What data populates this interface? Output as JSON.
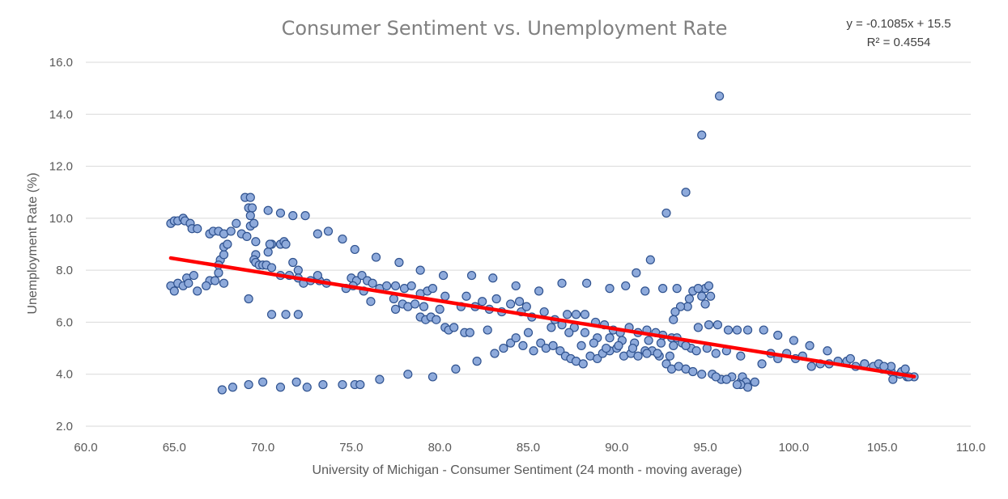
{
  "chart_data": {
    "type": "scatter",
    "title": "Consumer Sentiment vs. Unemployment Rate",
    "xlabel": "University of Michigan - Consumer Sentiment (24 month - moving average)",
    "ylabel": "Unemployment Rate (%)",
    "xlim": [
      60,
      110
    ],
    "ylim": [
      2,
      16
    ],
    "x_ticks": [
      "60.0",
      "65.0",
      "70.0",
      "75.0",
      "80.0",
      "85.0",
      "90.0",
      "95.0",
      "100.0",
      "105.0",
      "110.0"
    ],
    "y_ticks": [
      "2.0",
      "4.0",
      "6.0",
      "8.0",
      "10.0",
      "12.0",
      "14.0",
      "16.0"
    ],
    "grid": true,
    "legend": "none",
    "colors": {
      "marker_fill": "#8eaadb",
      "marker_edge": "#2f528f",
      "trendline": "#ff0000"
    },
    "trendline": {
      "type": "linear",
      "slope": -0.1085,
      "intercept": 15.5,
      "x_range": [
        64.8,
        106.8
      ],
      "equation": "y = -0.1085x + 15.5",
      "r_squared": "R² = 0.4554"
    },
    "points": [
      [
        64.8,
        9.8
      ],
      [
        65.0,
        9.9
      ],
      [
        65.2,
        9.9
      ],
      [
        65.5,
        10.0
      ],
      [
        65.6,
        9.9
      ],
      [
        65.9,
        9.8
      ],
      [
        66.0,
        9.6
      ],
      [
        66.3,
        9.6
      ],
      [
        67.0,
        9.4
      ],
      [
        67.2,
        9.5
      ],
      [
        67.5,
        9.5
      ],
      [
        67.8,
        9.4
      ],
      [
        68.2,
        9.5
      ],
      [
        68.5,
        9.8
      ],
      [
        68.8,
        9.4
      ],
      [
        69.1,
        9.3
      ],
      [
        69.3,
        9.7
      ],
      [
        69.5,
        9.8
      ],
      [
        69.0,
        10.8
      ],
      [
        69.3,
        10.8
      ],
      [
        69.2,
        10.4
      ],
      [
        69.4,
        10.4
      ],
      [
        69.3,
        10.1
      ],
      [
        70.3,
        10.3
      ],
      [
        71.0,
        10.2
      ],
      [
        71.7,
        10.1
      ],
      [
        72.4,
        10.1
      ],
      [
        69.6,
        9.1
      ],
      [
        70.5,
        9.0
      ],
      [
        71.0,
        9.0
      ],
      [
        71.2,
        9.1
      ],
      [
        71.3,
        9.0
      ],
      [
        70.3,
        8.7
      ],
      [
        70.4,
        9.0
      ],
      [
        69.6,
        8.6
      ],
      [
        69.5,
        8.4
      ],
      [
        69.6,
        8.3
      ],
      [
        69.8,
        8.2
      ],
      [
        70.0,
        8.2
      ],
      [
        70.2,
        8.2
      ],
      [
        70.5,
        8.1
      ],
      [
        67.6,
        8.4
      ],
      [
        67.8,
        8.6
      ],
      [
        67.5,
        8.2
      ],
      [
        67.8,
        8.9
      ],
      [
        68.0,
        9.0
      ],
      [
        67.5,
        7.9
      ],
      [
        67.0,
        7.6
      ],
      [
        66.8,
        7.4
      ],
      [
        67.3,
        7.6
      ],
      [
        67.8,
        7.5
      ],
      [
        64.8,
        7.4
      ],
      [
        65.0,
        7.2
      ],
      [
        65.2,
        7.5
      ],
      [
        65.5,
        7.4
      ],
      [
        65.7,
        7.7
      ],
      [
        65.8,
        7.5
      ],
      [
        66.1,
        7.8
      ],
      [
        66.3,
        7.2
      ],
      [
        71.7,
        8.3
      ],
      [
        72.0,
        8.0
      ],
      [
        71.5,
        7.8
      ],
      [
        71.0,
        7.8
      ],
      [
        72.0,
        7.7
      ],
      [
        72.3,
        7.5
      ],
      [
        72.7,
        7.6
      ],
      [
        73.2,
        7.6
      ],
      [
        73.1,
        7.8
      ],
      [
        73.6,
        7.5
      ],
      [
        73.1,
        9.4
      ],
      [
        73.7,
        9.5
      ],
      [
        74.5,
        9.2
      ],
      [
        75.2,
        8.8
      ],
      [
        76.4,
        8.5
      ],
      [
        77.7,
        8.3
      ],
      [
        75.0,
        7.7
      ],
      [
        75.3,
        7.6
      ],
      [
        75.6,
        7.8
      ],
      [
        75.9,
        7.6
      ],
      [
        76.2,
        7.5
      ],
      [
        76.6,
        7.3
      ],
      [
        77.0,
        7.4
      ],
      [
        77.5,
        7.4
      ],
      [
        78.0,
        7.3
      ],
      [
        78.4,
        7.4
      ],
      [
        78.9,
        7.1
      ],
      [
        79.3,
        7.2
      ],
      [
        79.6,
        7.3
      ],
      [
        80.3,
        7.0
      ],
      [
        74.7,
        7.3
      ],
      [
        75.1,
        7.4
      ],
      [
        75.7,
        7.2
      ],
      [
        76.1,
        6.8
      ],
      [
        77.4,
        6.9
      ],
      [
        77.5,
        6.5
      ],
      [
        77.9,
        6.7
      ],
      [
        78.2,
        6.6
      ],
      [
        78.6,
        6.7
      ],
      [
        78.9,
        6.2
      ],
      [
        79.2,
        6.1
      ],
      [
        79.5,
        6.2
      ],
      [
        79.8,
        6.1
      ],
      [
        80.0,
        6.5
      ],
      [
        80.3,
        5.8
      ],
      [
        80.5,
        5.7
      ],
      [
        80.8,
        5.8
      ],
      [
        79.1,
        6.6
      ],
      [
        78.9,
        8.0
      ],
      [
        80.2,
        7.8
      ],
      [
        81.8,
        7.8
      ],
      [
        83.0,
        7.7
      ],
      [
        81.2,
        6.6
      ],
      [
        81.5,
        7.0
      ],
      [
        81.4,
        5.6
      ],
      [
        81.7,
        5.6
      ],
      [
        82.0,
        6.6
      ],
      [
        82.4,
        6.8
      ],
      [
        82.8,
        6.5
      ],
      [
        83.2,
        6.9
      ],
      [
        83.5,
        6.4
      ],
      [
        84.0,
        6.7
      ],
      [
        84.5,
        6.8
      ],
      [
        84.6,
        6.4
      ],
      [
        84.9,
        6.6
      ],
      [
        84.3,
        7.4
      ],
      [
        85.6,
        7.2
      ],
      [
        86.9,
        7.5
      ],
      [
        88.3,
        7.5
      ],
      [
        89.6,
        7.3
      ],
      [
        90.5,
        7.4
      ],
      [
        91.1,
        7.9
      ],
      [
        91.9,
        8.4
      ],
      [
        91.6,
        7.2
      ],
      [
        92.6,
        7.3
      ],
      [
        93.4,
        7.3
      ],
      [
        94.3,
        7.2
      ],
      [
        94.8,
        7.0
      ],
      [
        95.0,
        7.3
      ],
      [
        95.2,
        7.4
      ],
      [
        95.3,
        7.0
      ],
      [
        94.6,
        7.3
      ],
      [
        94.0,
        6.6
      ],
      [
        93.6,
        6.6
      ],
      [
        93.3,
        6.4
      ],
      [
        93.2,
        6.1
      ],
      [
        92.8,
        10.2
      ],
      [
        93.9,
        11.0
      ],
      [
        94.8,
        13.2
      ],
      [
        95.8,
        14.7
      ],
      [
        95.0,
        6.7
      ],
      [
        94.1,
        6.9
      ],
      [
        82.1,
        4.5
      ],
      [
        82.7,
        5.7
      ],
      [
        83.1,
        4.8
      ],
      [
        83.6,
        5.0
      ],
      [
        84.0,
        5.2
      ],
      [
        84.3,
        5.4
      ],
      [
        84.7,
        5.1
      ],
      [
        85.0,
        5.6
      ],
      [
        85.3,
        4.9
      ],
      [
        85.7,
        5.2
      ],
      [
        86.0,
        5.0
      ],
      [
        86.4,
        5.1
      ],
      [
        86.8,
        4.9
      ],
      [
        87.1,
        4.7
      ],
      [
        87.4,
        4.6
      ],
      [
        87.7,
        4.5
      ],
      [
        88.1,
        4.4
      ],
      [
        88.5,
        4.7
      ],
      [
        88.9,
        4.6
      ],
      [
        89.2,
        4.8
      ],
      [
        89.6,
        4.9
      ],
      [
        90.0,
        5.0
      ],
      [
        90.4,
        4.7
      ],
      [
        90.8,
        4.8
      ],
      [
        91.2,
        4.7
      ],
      [
        91.6,
        4.9
      ],
      [
        92.0,
        4.9
      ],
      [
        92.4,
        4.7
      ],
      [
        92.8,
        4.4
      ],
      [
        93.1,
        4.2
      ],
      [
        93.5,
        4.3
      ],
      [
        93.9,
        4.2
      ],
      [
        94.3,
        4.1
      ],
      [
        94.8,
        4.0
      ],
      [
        95.4,
        4.0
      ],
      [
        95.9,
        3.8
      ],
      [
        96.5,
        3.9
      ],
      [
        97.0,
        3.7
      ],
      [
        97.3,
        3.6
      ],
      [
        97.8,
        3.7
      ],
      [
        98.2,
        4.4
      ],
      [
        98.7,
        4.8
      ],
      [
        99.1,
        4.6
      ],
      [
        99.6,
        4.8
      ],
      [
        100.1,
        4.6
      ],
      [
        100.5,
        4.7
      ],
      [
        101.0,
        4.3
      ],
      [
        101.5,
        4.4
      ],
      [
        102.0,
        4.4
      ],
      [
        102.5,
        4.5
      ],
      [
        103.0,
        4.5
      ],
      [
        103.5,
        4.3
      ],
      [
        104.0,
        4.4
      ],
      [
        104.5,
        4.3
      ],
      [
        105.0,
        4.2
      ],
      [
        105.5,
        4.1
      ],
      [
        106.0,
        4.0
      ],
      [
        106.4,
        3.9
      ],
      [
        106.8,
        3.9
      ],
      [
        97.1,
        3.9
      ],
      [
        97.3,
        3.7
      ],
      [
        97.4,
        3.5
      ],
      [
        97.0,
        3.6
      ],
      [
        96.8,
        3.6
      ],
      [
        96.2,
        3.8
      ],
      [
        95.6,
        3.9
      ],
      [
        103.2,
        4.6
      ],
      [
        104.0,
        4.4
      ],
      [
        104.8,
        4.4
      ],
      [
        105.3,
        4.2
      ],
      [
        105.5,
        4.3
      ],
      [
        106.1,
        4.1
      ],
      [
        106.3,
        4.2
      ],
      [
        105.6,
        3.8
      ],
      [
        106.5,
        3.9
      ],
      [
        105.1,
        4.3
      ],
      [
        85.2,
        6.2
      ],
      [
        85.9,
        6.4
      ],
      [
        86.5,
        6.1
      ],
      [
        87.2,
        6.3
      ],
      [
        87.7,
        6.3
      ],
      [
        88.2,
        6.3
      ],
      [
        88.8,
        6.0
      ],
      [
        89.3,
        5.9
      ],
      [
        89.8,
        5.7
      ],
      [
        90.2,
        5.6
      ],
      [
        90.7,
        5.8
      ],
      [
        91.2,
        5.6
      ],
      [
        91.7,
        5.7
      ],
      [
        92.2,
        5.6
      ],
      [
        92.6,
        5.5
      ],
      [
        93.1,
        5.4
      ],
      [
        93.4,
        5.4
      ],
      [
        93.7,
        5.2
      ],
      [
        94.2,
        5.0
      ],
      [
        94.6,
        5.8
      ],
      [
        95.2,
        5.9
      ],
      [
        95.7,
        5.9
      ],
      [
        96.3,
        5.7
      ],
      [
        96.8,
        5.7
      ],
      [
        97.4,
        5.7
      ],
      [
        98.3,
        5.7
      ],
      [
        99.1,
        5.5
      ],
      [
        100.0,
        5.3
      ],
      [
        100.9,
        5.1
      ],
      [
        101.9,
        4.9
      ],
      [
        86.3,
        5.8
      ],
      [
        86.9,
        5.9
      ],
      [
        87.6,
        5.8
      ],
      [
        88.2,
        5.6
      ],
      [
        88.9,
        5.4
      ],
      [
        89.6,
        5.4
      ],
      [
        90.3,
        5.3
      ],
      [
        91.0,
        5.2
      ],
      [
        91.8,
        5.3
      ],
      [
        92.5,
        5.2
      ],
      [
        93.2,
        5.1
      ],
      [
        93.9,
        5.1
      ],
      [
        94.5,
        4.9
      ],
      [
        95.1,
        5.0
      ],
      [
        95.6,
        4.8
      ],
      [
        96.2,
        4.9
      ],
      [
        97.0,
        4.7
      ],
      [
        87.3,
        5.6
      ],
      [
        88.0,
        5.1
      ],
      [
        88.7,
        5.2
      ],
      [
        89.4,
        5.0
      ],
      [
        90.1,
        5.1
      ],
      [
        90.9,
        5.0
      ],
      [
        91.7,
        4.8
      ],
      [
        92.3,
        4.8
      ],
      [
        93.0,
        4.7
      ],
      [
        67.7,
        3.4
      ],
      [
        68.3,
        3.5
      ],
      [
        69.2,
        3.6
      ],
      [
        70.0,
        3.7
      ],
      [
        71.0,
        3.5
      ],
      [
        71.9,
        3.7
      ],
      [
        72.5,
        3.5
      ],
      [
        73.4,
        3.6
      ],
      [
        74.5,
        3.6
      ],
      [
        75.2,
        3.6
      ],
      [
        75.5,
        3.6
      ],
      [
        76.6,
        3.8
      ],
      [
        78.2,
        4.0
      ],
      [
        79.6,
        3.9
      ],
      [
        80.9,
        4.2
      ],
      [
        69.2,
        6.9
      ],
      [
        70.5,
        6.3
      ],
      [
        71.3,
        6.3
      ],
      [
        72.0,
        6.3
      ]
    ]
  }
}
